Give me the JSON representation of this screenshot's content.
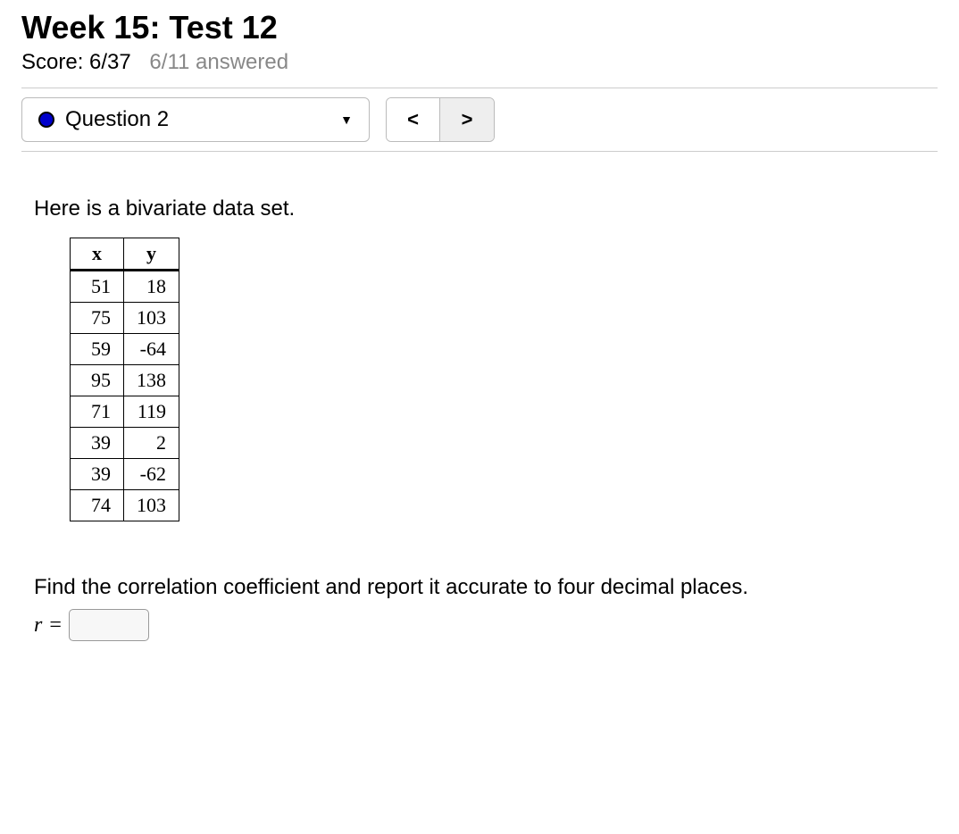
{
  "header": {
    "title": "Week 15: Test 12",
    "score_label": "Score: 6/37",
    "answered_label": "6/11 answered"
  },
  "nav": {
    "question_label": "Question 2",
    "status_color": "#0000cc",
    "prev_symbol": "<",
    "next_symbol": ">"
  },
  "question": {
    "intro": "Here is a bivariate data set.",
    "table": {
      "columns": [
        "x",
        "y"
      ],
      "rows": [
        [
          "51",
          "18"
        ],
        [
          "75",
          "103"
        ],
        [
          "59",
          "-64"
        ],
        [
          "95",
          "138"
        ],
        [
          "71",
          "119"
        ],
        [
          "39",
          "2"
        ],
        [
          "39",
          "-62"
        ],
        [
          "74",
          "103"
        ]
      ]
    },
    "instruction": "Find the correlation coefficient and report it accurate to four decimal places.",
    "answer_var": "r",
    "answer_eq": "=",
    "answer_value": ""
  },
  "styles": {
    "background_color": "#ffffff",
    "text_color": "#000000",
    "muted_color": "#888888",
    "border_color": "#bbbbbb",
    "divider_color": "#cccccc",
    "nav_next_bg": "#eeeeee",
    "table_border": "#000000"
  }
}
